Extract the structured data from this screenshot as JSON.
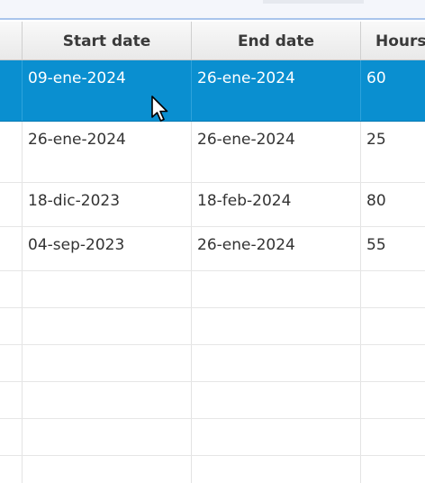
{
  "table": {
    "columns": [
      "",
      "Start date",
      "End date",
      "Hours"
    ],
    "rows": [
      {
        "start": "09-ene-2024",
        "end": "26-ene-2024",
        "hours": "60",
        "selected": true
      },
      {
        "start": "26-ene-2024",
        "end": "26-ene-2024",
        "hours": "25",
        "selected": false
      },
      {
        "start": "18-dic-2023",
        "end": "18-feb-2024",
        "hours": "80",
        "selected": false
      },
      {
        "start": "04-sep-2023",
        "end": "26-ene-2024",
        "hours": "55",
        "selected": false
      },
      {
        "start": "",
        "end": "",
        "hours": "",
        "selected": false
      },
      {
        "start": "",
        "end": "",
        "hours": "",
        "selected": false
      },
      {
        "start": "",
        "end": "",
        "hours": "",
        "selected": false
      },
      {
        "start": "",
        "end": "",
        "hours": "",
        "selected": false
      },
      {
        "start": "",
        "end": "",
        "hours": "",
        "selected": false
      },
      {
        "start": "",
        "end": "",
        "hours": "",
        "selected": false
      }
    ]
  },
  "colors": {
    "selection": "#0a8fd0",
    "header_border": "#c8c8c8",
    "top_accent": "#a9c5ec"
  },
  "icons": {
    "cursor": "mouse-pointer-arrow-icon"
  }
}
